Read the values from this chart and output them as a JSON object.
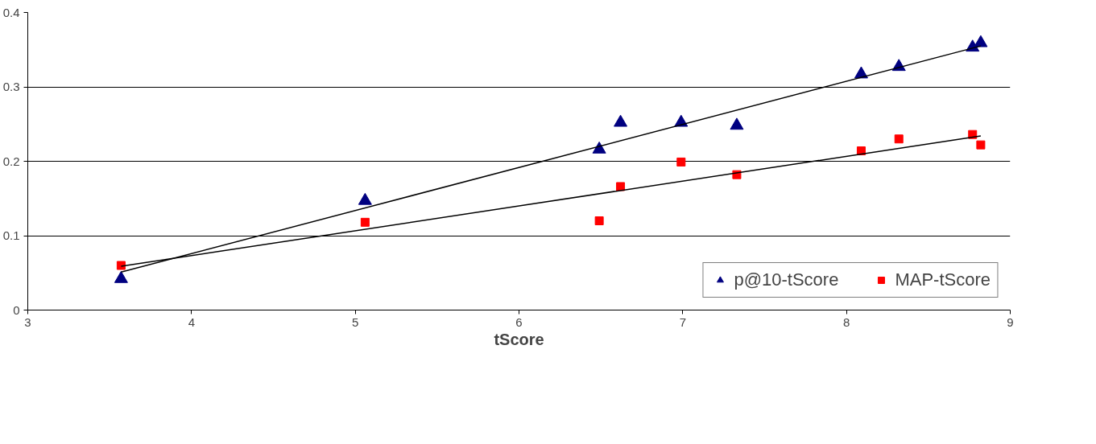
{
  "chart_data": {
    "type": "scatter",
    "xlabel": "tScore",
    "xlim": [
      3,
      9
    ],
    "xticks": [
      3,
      4,
      5,
      6,
      7,
      8,
      9
    ],
    "ylim": [
      0,
      0.4
    ],
    "yticks": [
      0,
      0.1,
      0.2,
      0.3,
      0.4
    ],
    "grid": "y",
    "legend": "bottom right",
    "series": [
      {
        "name": "p@10-tScore",
        "color": "#000080",
        "marker": "triangle",
        "x": [
          3.57,
          5.06,
          6.49,
          6.62,
          6.99,
          7.33,
          8.09,
          8.32,
          8.77,
          8.82
        ],
        "values": [
          0.042,
          0.147,
          0.216,
          0.252,
          0.252,
          0.248,
          0.317,
          0.327,
          0.353,
          0.359
        ]
      },
      {
        "name": "MAP-tScore",
        "color": "#ff0000",
        "marker": "square",
        "x": [
          3.57,
          5.06,
          6.49,
          6.62,
          6.99,
          7.33,
          8.09,
          8.32,
          8.77,
          8.82
        ],
        "values": [
          0.06,
          0.118,
          0.12,
          0.166,
          0.199,
          0.182,
          0.214,
          0.23,
          0.236,
          0.222
        ]
      },
      {
        "type": "line",
        "color": "#000000",
        "marker": "none",
        "x": [
          3.57,
          8.82
        ],
        "values": [
          0.051,
          0.355
        ]
      },
      {
        "type": "line",
        "color": "#000000",
        "marker": "none",
        "x": [
          3.57,
          8.82
        ],
        "values": [
          0.059,
          0.234
        ]
      }
    ]
  }
}
